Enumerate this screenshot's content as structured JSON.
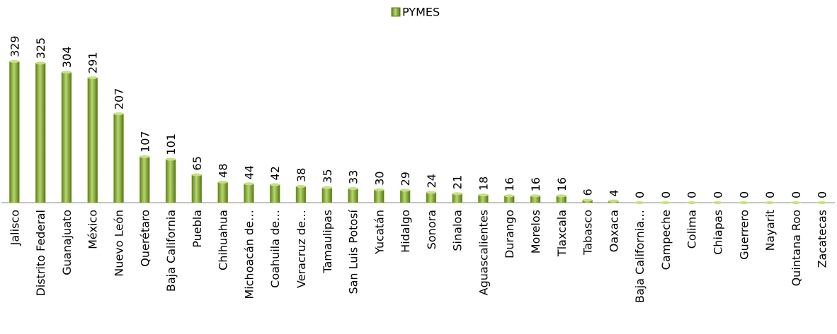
{
  "chart_data": {
    "type": "bar",
    "categories": [
      "Jalisco",
      "Distrito Federal",
      "Guanajuato",
      "México",
      "Nuevo León",
      "Querétaro",
      "Baja California",
      "Puebla",
      "Chihuahua",
      "Michoacán de…",
      "Coahuila de…",
      "Veracruz de…",
      "Tamaulipas",
      "San Luis Potosí",
      "Yucatán",
      "Hidalgo",
      "Sonora",
      "Sinaloa",
      "Aguascalientes",
      "Durango",
      "Morelos",
      "Tlaxcala",
      "Tabasco",
      "Oaxaca",
      "Baja California…",
      "Campeche",
      "Colima",
      "Chiapas",
      "Guerrero",
      "Nayarit",
      "Quintana Roo",
      "Zacatecas"
    ],
    "series": [
      {
        "name": "PYMES",
        "color": "#8db33a",
        "values": [
          329,
          325,
          304,
          291,
          207,
          107,
          101,
          65,
          48,
          44,
          42,
          38,
          35,
          33,
          30,
          29,
          24,
          21,
          18,
          16,
          16,
          16,
          6,
          4,
          0,
          0,
          0,
          0,
          0,
          0,
          0,
          0
        ]
      }
    ],
    "legend": "top"
  }
}
